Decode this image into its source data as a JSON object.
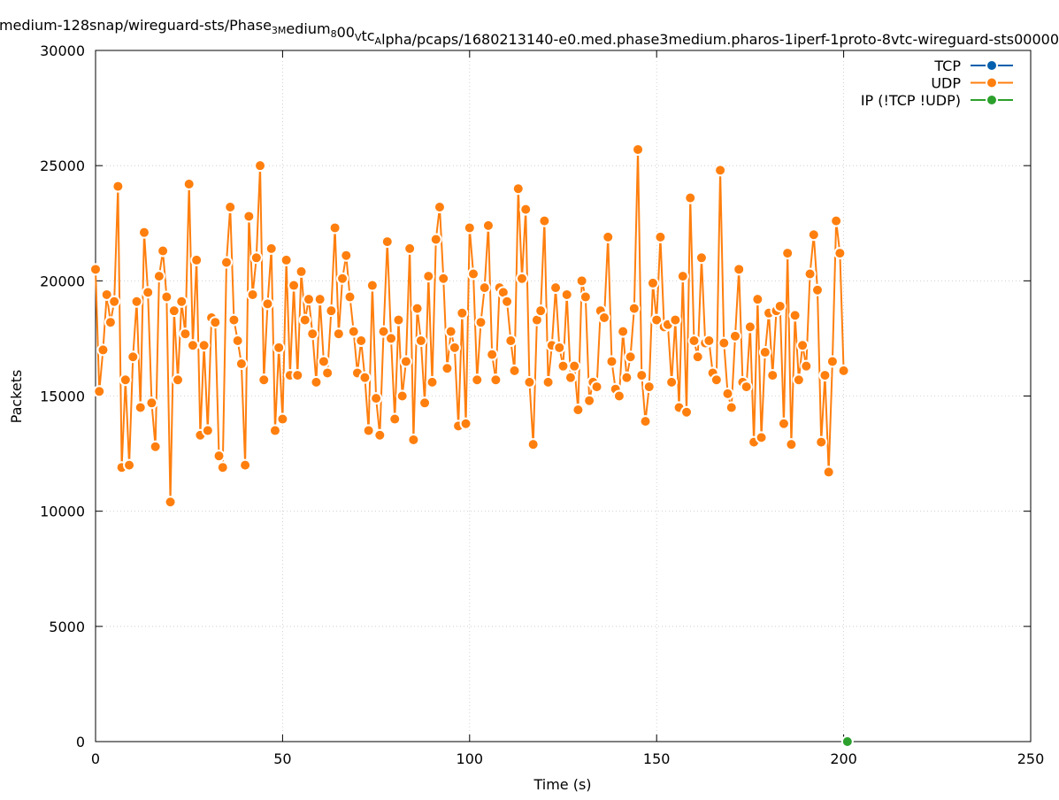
{
  "chart_data": {
    "type": "line",
    "title": "medium-128snap/wireguard-sts/Phase3Medium800VtcAlpha/pcaps/1680213140-e0.med.phase3medium.pharos-1iperf-1proto-8vtc-wireguard-sts00000",
    "title_parts": [
      {
        "text": "medium-128snap/wireguard-sts/Phase",
        "sub": false
      },
      {
        "text": "3M",
        "sub": true
      },
      {
        "text": "edium",
        "sub": false
      },
      {
        "text": "8",
        "sub": true
      },
      {
        "text": "00",
        "sub": false
      },
      {
        "text": "V",
        "sub": true
      },
      {
        "text": "tc",
        "sub": false
      },
      {
        "text": "A",
        "sub": true
      },
      {
        "text": "lpha/pcaps/1680213140-e0.med.phase3medium.pharos-1iperf-1proto-8vtc-wireguard-sts00000",
        "sub": false
      }
    ],
    "xlabel": "Time (s)",
    "ylabel": "Packets",
    "xlim": [
      0,
      250
    ],
    "ylim": [
      0,
      30000
    ],
    "xticks": [
      0,
      50,
      100,
      150,
      200,
      250
    ],
    "yticks": [
      0,
      5000,
      10000,
      15000,
      20000,
      25000,
      30000
    ],
    "grid": true,
    "legend_position": "top-right",
    "series": [
      {
        "name": "TCP",
        "color": "#0060ad",
        "x": [],
        "y": []
      },
      {
        "name": "UDP",
        "color": "#ff7f0e",
        "x": [
          0,
          1,
          2,
          3,
          4,
          5,
          6,
          7,
          8,
          9,
          10,
          11,
          12,
          13,
          14,
          15,
          16,
          17,
          18,
          19,
          20,
          21,
          22,
          23,
          24,
          25,
          26,
          27,
          28,
          29,
          30,
          31,
          32,
          33,
          34,
          35,
          36,
          37,
          38,
          39,
          40,
          41,
          42,
          43,
          44,
          45,
          46,
          47,
          48,
          49,
          50,
          51,
          52,
          53,
          54,
          55,
          56,
          57,
          58,
          59,
          60,
          61,
          62,
          63,
          64,
          65,
          66,
          67,
          68,
          69,
          70,
          71,
          72,
          73,
          74,
          75,
          76,
          77,
          78,
          79,
          80,
          81,
          82,
          83,
          84,
          85,
          86,
          87,
          88,
          89,
          90,
          91,
          92,
          93,
          94,
          95,
          96,
          97,
          98,
          99,
          100,
          101,
          102,
          103,
          104,
          105,
          106,
          107,
          108,
          109,
          110,
          111,
          112,
          113,
          114,
          115,
          116,
          117,
          118,
          119,
          120,
          121,
          122,
          123,
          124,
          125,
          126,
          127,
          128,
          129,
          130,
          131,
          132,
          133,
          134,
          135,
          136,
          137,
          138,
          139,
          140,
          141,
          142,
          143,
          144,
          145,
          146,
          147,
          148,
          149,
          150,
          151,
          152,
          153,
          154,
          155,
          156,
          157,
          158,
          159,
          160,
          161,
          162,
          163,
          164,
          165,
          166,
          167,
          168,
          169,
          170,
          171,
          172,
          173,
          174,
          175,
          176,
          177,
          178,
          179,
          180,
          181,
          182,
          183,
          184,
          185,
          186,
          187,
          188,
          189,
          190,
          191,
          192,
          193,
          194,
          195,
          196,
          197,
          198,
          199,
          200
        ],
        "y": [
          20500,
          15200,
          17000,
          19400,
          18200,
          19100,
          24100,
          11900,
          15700,
          12000,
          16700,
          19100,
          14500,
          22100,
          19500,
          14700,
          12800,
          20200,
          21300,
          19300,
          10400,
          18700,
          15700,
          19100,
          17700,
          24200,
          17200,
          20900,
          13300,
          17200,
          13500,
          18400,
          18200,
          12400,
          11900,
          20800,
          23200,
          18300,
          17400,
          16400,
          12000,
          22800,
          19400,
          21000,
          25000,
          15700,
          19000,
          21400,
          13500,
          17100,
          14000,
          20900,
          15900,
          19800,
          15900,
          20400,
          18300,
          19200,
          17700,
          15600,
          19200,
          16500,
          16000,
          18700,
          22300,
          17700,
          20100,
          21100,
          19300,
          17800,
          16000,
          17400,
          15800,
          13500,
          19800,
          14900,
          13300,
          17800,
          21700,
          17500,
          14000,
          18300,
          15000,
          16500,
          21400,
          13100,
          18800,
          17400,
          14700,
          20200,
          15600,
          21800,
          23200,
          20100,
          16200,
          17800,
          17100,
          13700,
          18600,
          13800,
          22300,
          20300,
          15700,
          18200,
          19700,
          22400,
          16800,
          15700,
          19700,
          19500,
          19100,
          17400,
          16100,
          24000,
          20100,
          23100,
          15600,
          12900,
          18300,
          18700,
          22600,
          15600,
          17200,
          19700,
          17100,
          16300,
          19400,
          15800,
          16300,
          14400,
          20000,
          19300,
          14800,
          15600,
          15400,
          18700,
          18400,
          21900,
          16500,
          15300,
          15000,
          17800,
          15800,
          16700,
          18800,
          25700,
          15900,
          13900,
          15400,
          19900,
          18300,
          21900,
          18000,
          18100,
          15600,
          18300,
          14500,
          20200,
          14300,
          23600,
          17400,
          16700,
          21000,
          17300,
          17400,
          16000,
          15700,
          24800,
          17300,
          15100,
          14500,
          17600,
          20500,
          15600,
          15400,
          18000,
          13000,
          19200,
          13200,
          16900,
          18600,
          15900,
          18700,
          18900,
          13800,
          21200,
          12900,
          18500,
          15700,
          17200,
          16300,
          20300,
          22000,
          19600,
          13000,
          15900,
          11700,
          16500,
          22600,
          21200,
          16100
        ]
      },
      {
        "name": "IP (!TCP  !UDP)",
        "color": "#2ca02c",
        "x": [
          201
        ],
        "y": [
          0
        ]
      }
    ]
  }
}
